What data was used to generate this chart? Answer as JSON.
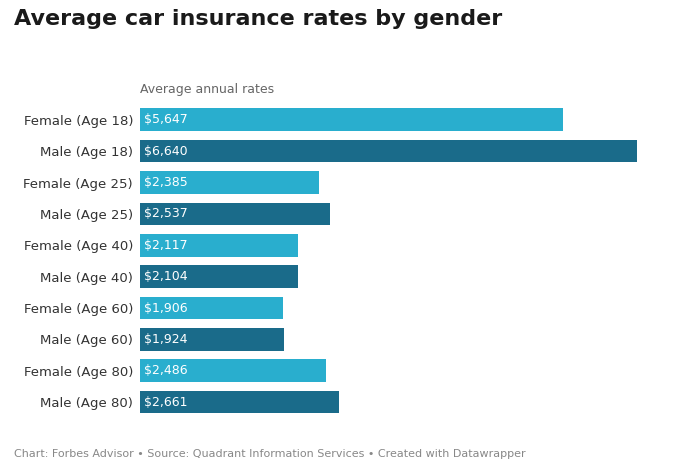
{
  "title": "Average car insurance rates by gender",
  "subtitle": "Average annual rates",
  "footer": "Chart: Forbes Advisor • Source: Quadrant Information Services • Created with Datawrapper",
  "categories": [
    "Male (Age 80)",
    "Female (Age 80)",
    "Male (Age 60)",
    "Female (Age 60)",
    "Male (Age 40)",
    "Female (Age 40)",
    "Male (Age 25)",
    "Female (Age 25)",
    "Male (Age 18)",
    "Female (Age 18)"
  ],
  "values": [
    2661,
    2486,
    1924,
    1906,
    2104,
    2117,
    2537,
    2385,
    6640,
    5647
  ],
  "labels": [
    "$2,661",
    "$2,486",
    "$1,924",
    "$1,906",
    "$2,104",
    "$2,117",
    "$2,537",
    "$2,385",
    "$6,640",
    "$5,647"
  ],
  "colors": [
    "#1a6b8a",
    "#29aece",
    "#1a6b8a",
    "#29aece",
    "#1a6b8a",
    "#29aece",
    "#1a6b8a",
    "#29aece",
    "#1a6b8a",
    "#29aece"
  ],
  "background_color": "#ffffff",
  "xlim": [
    0,
    7200
  ],
  "title_fontsize": 16,
  "subtitle_fontsize": 9,
  "label_fontsize": 9,
  "footer_fontsize": 8,
  "tick_fontsize": 9.5
}
